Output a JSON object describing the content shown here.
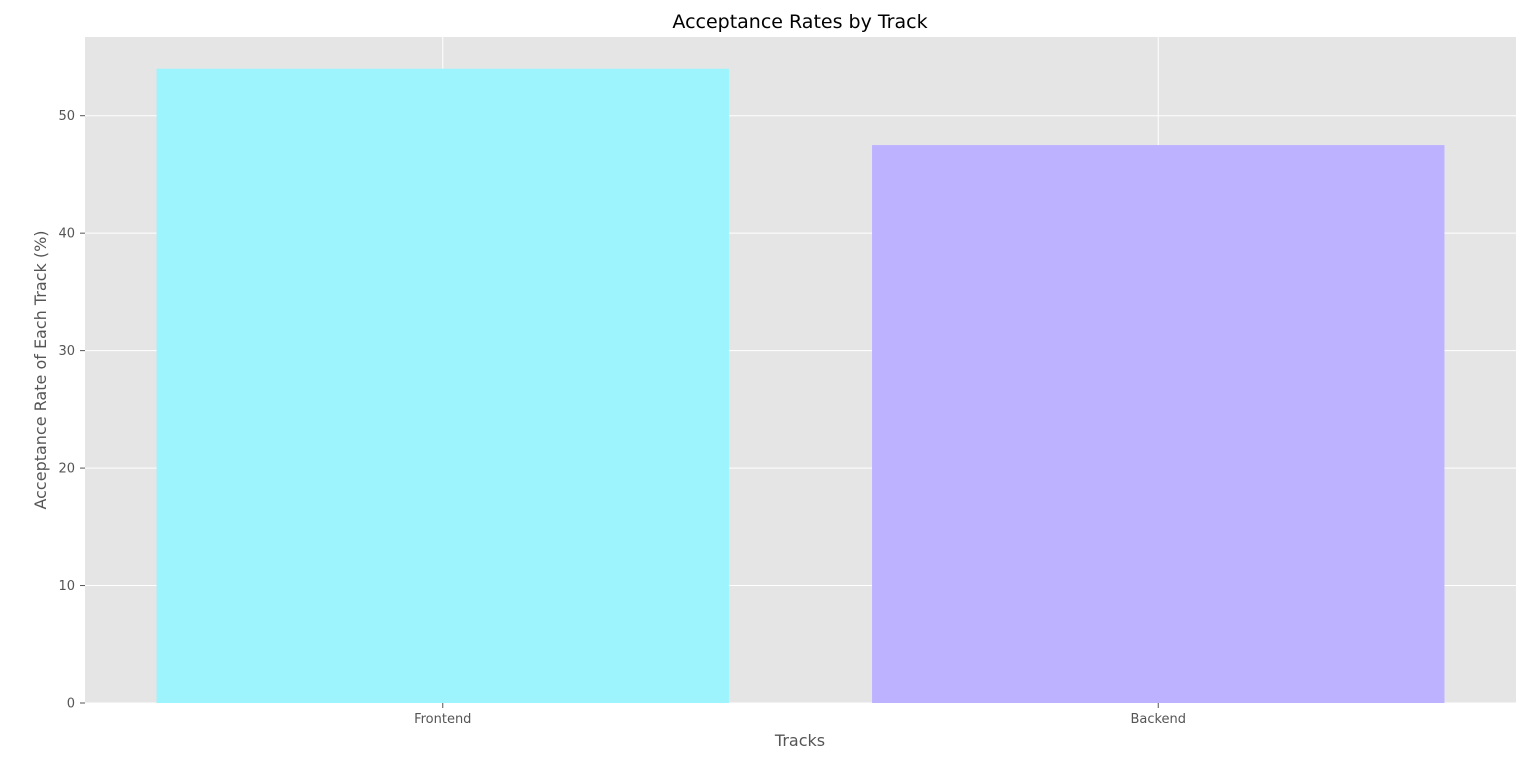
{
  "chart_data": {
    "type": "bar",
    "title": "Acceptance Rates by Track",
    "xlabel": "Tracks",
    "ylabel": "Acceptance Rate of Each Track (%)",
    "categories": [
      "Frontend",
      "Backend"
    ],
    "values": [
      54.0,
      47.5
    ],
    "colors": [
      "#9df4fd",
      "#bdb2ff"
    ],
    "ylim": [
      0,
      56.7
    ],
    "yticks": [
      0,
      10,
      20,
      30,
      40,
      50
    ],
    "grid": true,
    "legend": "none",
    "background_color": "#e5e5e5",
    "grid_color": "#ffffff"
  }
}
